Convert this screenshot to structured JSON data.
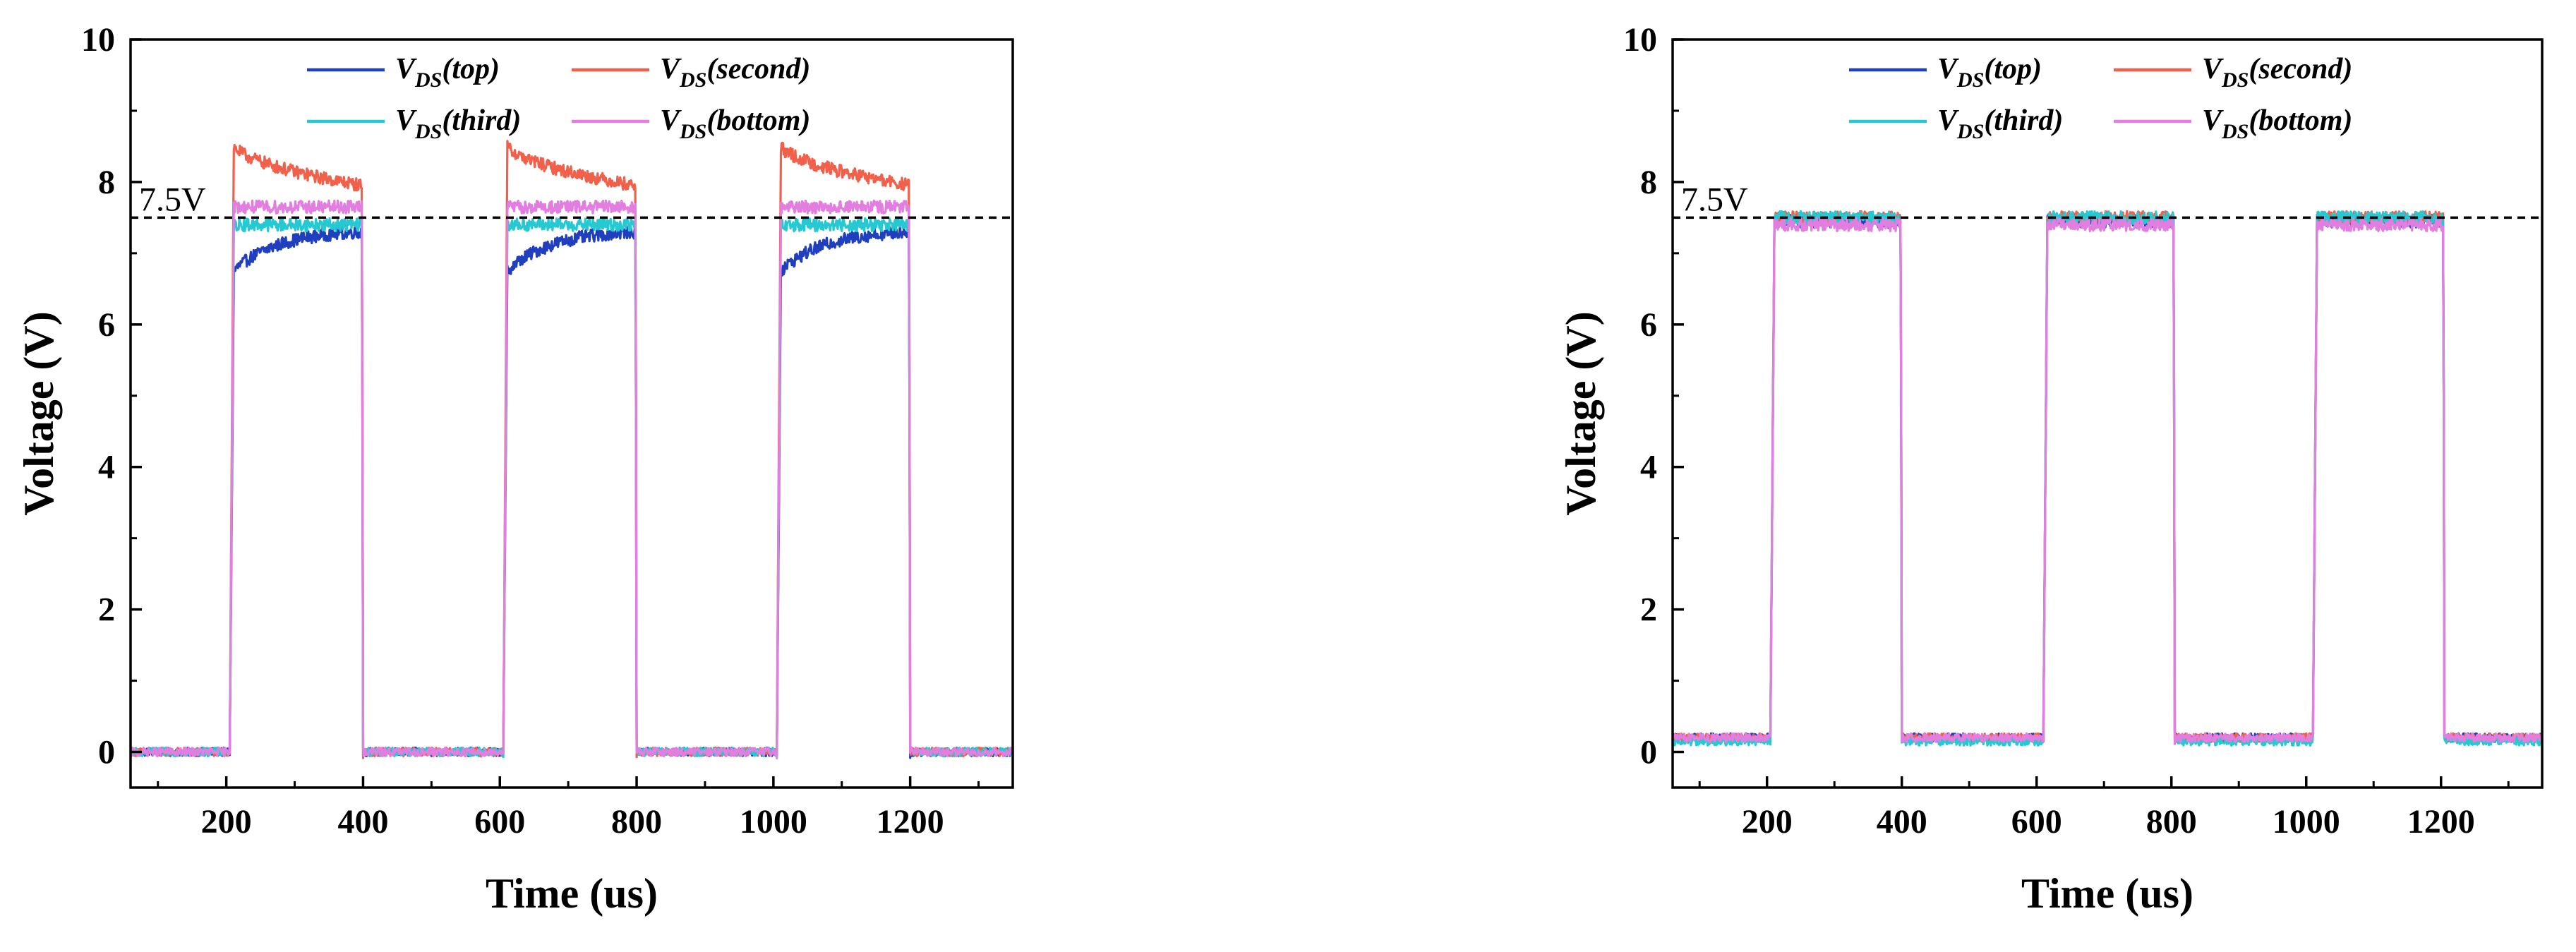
{
  "chart_data": [
    {
      "type": "line",
      "title": "",
      "xlabel": "Time (us)",
      "ylabel": "Voltage (V)",
      "xlim": [
        60,
        1350
      ],
      "ylim": [
        -0.5,
        10
      ],
      "xticks": [
        200,
        400,
        600,
        800,
        1000,
        1200
      ],
      "yticks": [
        0,
        2,
        4,
        6,
        8,
        10
      ],
      "reference_line": {
        "y": 7.5,
        "label": "7.5V",
        "style": "dashed"
      },
      "legend_location": "top",
      "pulses": [
        [
          205,
          400
        ],
        [
          605,
          800
        ],
        [
          1005,
          1200
        ]
      ],
      "series": [
        {
          "name": "V",
          "sub": "DS",
          "suffix": "(top)",
          "color": "#1f3fbf",
          "low": 0.0,
          "high_start": 6.7,
          "high_end": 7.3,
          "overshoot": 0.0
        },
        {
          "name": "V",
          "sub": "DS",
          "suffix": "(second)",
          "color": "#f0604a",
          "low": 0.0,
          "high_start": 8.6,
          "high_end": 7.95,
          "overshoot": 0.0
        },
        {
          "name": "V",
          "sub": "DS",
          "suffix": "(third)",
          "color": "#26c9d1",
          "low": 0.0,
          "high_start": 7.4,
          "high_end": 7.4,
          "overshoot": 0.0
        },
        {
          "name": "V",
          "sub": "DS",
          "suffix": "(bottom)",
          "color": "#e27ee0",
          "low": 0.0,
          "high_start": 7.65,
          "high_end": 7.65,
          "overshoot": 0.0
        }
      ]
    },
    {
      "type": "line",
      "title": "",
      "xlabel": "Time (us)",
      "ylabel": "Voltage (V)",
      "xlim": [
        60,
        1350
      ],
      "ylim": [
        -0.5,
        10
      ],
      "xticks": [
        200,
        400,
        600,
        800,
        1000,
        1200
      ],
      "yticks": [
        0,
        2,
        4,
        6,
        8,
        10
      ],
      "reference_line": {
        "y": 7.5,
        "label": "7.5V",
        "style": "dashed"
      },
      "legend_location": "top",
      "pulses": [
        [
          205,
          400
        ],
        [
          610,
          805
        ],
        [
          1010,
          1205
        ]
      ],
      "series": [
        {
          "name": "V",
          "sub": "DS",
          "suffix": "(top)",
          "color": "#1f3fbf",
          "low": 0.2,
          "high_start": 7.45,
          "high_end": 7.45,
          "overshoot": 0.0
        },
        {
          "name": "V",
          "sub": "DS",
          "suffix": "(second)",
          "color": "#f0604a",
          "low": 0.2,
          "high_start": 7.5,
          "high_end": 7.5,
          "overshoot": 0.0
        },
        {
          "name": "V",
          "sub": "DS",
          "suffix": "(third)",
          "color": "#26c9d1",
          "low": 0.15,
          "high_start": 7.5,
          "high_end": 7.5,
          "overshoot": 0.0
        },
        {
          "name": "V",
          "sub": "DS",
          "suffix": "(bottom)",
          "color": "#e27ee0",
          "low": 0.2,
          "high_start": 7.4,
          "high_end": 7.4,
          "overshoot": 0.0
        }
      ]
    }
  ]
}
